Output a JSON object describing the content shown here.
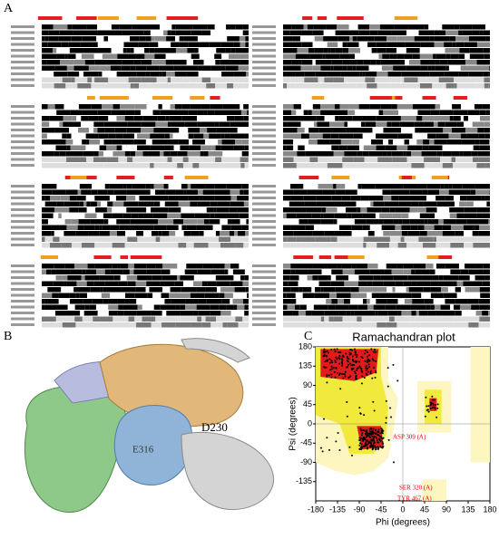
{
  "panel_a": {
    "label": "A"
  },
  "panel_b": {
    "label": "B",
    "residues": [
      "D230",
      "E316"
    ]
  },
  "panel_c": {
    "label": "C",
    "title": "Ramachandran plot",
    "x_label": "Phi (degrees)",
    "y_label": "Psi (degrees)",
    "xlim": [
      -180,
      180
    ],
    "ylim": [
      -180,
      180
    ],
    "xticks": [
      -180,
      -135,
      -90,
      -45,
      0,
      45,
      90,
      135,
      180
    ],
    "yticks": [
      -135,
      -90,
      -45,
      0,
      45,
      90,
      135,
      180
    ],
    "annotations": [
      "ASP 309 (A)",
      "SER 320 (A)",
      "TYR 467 (A)"
    ]
  }
}
